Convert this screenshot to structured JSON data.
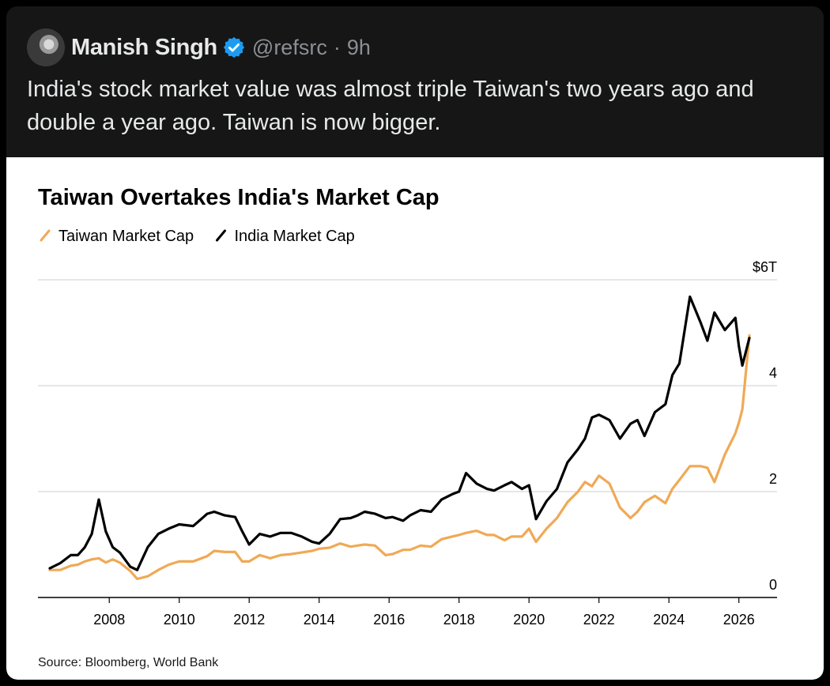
{
  "tweet": {
    "author_name": "Manish Singh",
    "handle": "@refsrc",
    "separator": "·",
    "time": "9h",
    "text": "India's stock market value was almost triple Taiwan's two years ago and double a year ago. Taiwan is now bigger.",
    "verified_color": "#1d9bf0"
  },
  "chart_data": {
    "type": "line",
    "title": "Taiwan Overtakes India's Market Cap",
    "source": "Source: Bloomberg, World Bank",
    "x_ticks": [
      "2008",
      "2010",
      "2012",
      "2014",
      "2016",
      "2018",
      "2020",
      "2022",
      "2024",
      "2026"
    ],
    "y_ticks": [
      "0",
      "2",
      "4",
      "$6T"
    ],
    "xlim": [
      2006.3,
      2026.3
    ],
    "ylim": [
      0,
      6
    ],
    "y_unit": "trillion USD",
    "grid": true,
    "legend_position": "top-left",
    "series": [
      {
        "name": "Taiwan Market Cap",
        "color": "#f0a955",
        "x": [
          2006.3,
          2006.6,
          2006.9,
          2007.1,
          2007.3,
          2007.5,
          2007.7,
          2007.9,
          2008.1,
          2008.3,
          2008.6,
          2008.8,
          2009.1,
          2009.4,
          2009.7,
          2010.0,
          2010.4,
          2010.8,
          2011.0,
          2011.3,
          2011.6,
          2011.8,
          2012.0,
          2012.3,
          2012.6,
          2012.9,
          2013.2,
          2013.5,
          2013.8,
          2014.0,
          2014.3,
          2014.6,
          2014.9,
          2015.1,
          2015.3,
          2015.6,
          2015.9,
          2016.1,
          2016.4,
          2016.6,
          2016.9,
          2017.2,
          2017.5,
          2017.8,
          2018.0,
          2018.2,
          2018.5,
          2018.8,
          2019.0,
          2019.3,
          2019.5,
          2019.8,
          2020.0,
          2020.2,
          2020.5,
          2020.8,
          2021.1,
          2021.4,
          2021.6,
          2021.8,
          2022.0,
          2022.3,
          2022.6,
          2022.9,
          2023.1,
          2023.3,
          2023.6,
          2023.9,
          2024.1,
          2024.3,
          2024.6,
          2024.9,
          2025.1,
          2025.3,
          2025.6,
          2025.9,
          2026.0,
          2026.1,
          2026.3
        ],
        "y": [
          0.52,
          0.52,
          0.6,
          0.62,
          0.68,
          0.72,
          0.74,
          0.66,
          0.72,
          0.66,
          0.5,
          0.35,
          0.4,
          0.52,
          0.62,
          0.68,
          0.68,
          0.78,
          0.88,
          0.86,
          0.86,
          0.68,
          0.68,
          0.8,
          0.74,
          0.8,
          0.82,
          0.85,
          0.88,
          0.92,
          0.94,
          1.02,
          0.96,
          0.98,
          1.0,
          0.98,
          0.8,
          0.82,
          0.9,
          0.9,
          0.98,
          0.96,
          1.1,
          1.15,
          1.18,
          1.22,
          1.26,
          1.18,
          1.18,
          1.08,
          1.15,
          1.15,
          1.3,
          1.05,
          1.3,
          1.5,
          1.8,
          2.0,
          2.18,
          2.1,
          2.3,
          2.15,
          1.7,
          1.5,
          1.62,
          1.8,
          1.92,
          1.78,
          2.05,
          2.22,
          2.48,
          2.48,
          2.45,
          2.18,
          2.7,
          3.1,
          3.3,
          3.55,
          4.95
        ]
      },
      {
        "name": "India Market Cap",
        "color": "#000000",
        "x": [
          2006.3,
          2006.6,
          2006.9,
          2007.1,
          2007.3,
          2007.5,
          2007.7,
          2007.9,
          2008.1,
          2008.3,
          2008.6,
          2008.8,
          2009.1,
          2009.4,
          2009.7,
          2010.0,
          2010.4,
          2010.8,
          2011.0,
          2011.3,
          2011.6,
          2011.8,
          2012.0,
          2012.3,
          2012.6,
          2012.9,
          2013.2,
          2013.5,
          2013.8,
          2014.0,
          2014.3,
          2014.6,
          2014.9,
          2015.1,
          2015.3,
          2015.6,
          2015.9,
          2016.1,
          2016.4,
          2016.6,
          2016.9,
          2017.2,
          2017.5,
          2017.8,
          2018.0,
          2018.2,
          2018.5,
          2018.8,
          2019.0,
          2019.3,
          2019.5,
          2019.8,
          2020.0,
          2020.2,
          2020.5,
          2020.8,
          2021.1,
          2021.4,
          2021.6,
          2021.8,
          2022.0,
          2022.3,
          2022.6,
          2022.9,
          2023.1,
          2023.3,
          2023.6,
          2023.9,
          2024.1,
          2024.3,
          2024.6,
          2024.9,
          2025.1,
          2025.3,
          2025.6,
          2025.9,
          2026.0,
          2026.1,
          2026.3
        ],
        "y": [
          0.55,
          0.65,
          0.8,
          0.8,
          0.95,
          1.2,
          1.85,
          1.25,
          0.95,
          0.85,
          0.58,
          0.52,
          0.95,
          1.2,
          1.3,
          1.38,
          1.35,
          1.58,
          1.62,
          1.55,
          1.52,
          1.25,
          1.0,
          1.2,
          1.15,
          1.22,
          1.22,
          1.15,
          1.05,
          1.02,
          1.2,
          1.48,
          1.5,
          1.55,
          1.62,
          1.58,
          1.5,
          1.52,
          1.45,
          1.55,
          1.65,
          1.62,
          1.85,
          1.95,
          2.0,
          2.35,
          2.15,
          2.05,
          2.02,
          2.12,
          2.18,
          2.05,
          2.12,
          1.48,
          1.82,
          2.05,
          2.55,
          2.8,
          3.0,
          3.4,
          3.45,
          3.35,
          3.0,
          3.28,
          3.35,
          3.05,
          3.5,
          3.65,
          4.2,
          4.42,
          5.68,
          5.2,
          4.85,
          5.38,
          5.05,
          5.28,
          4.75,
          4.38,
          4.9
        ]
      }
    ]
  }
}
